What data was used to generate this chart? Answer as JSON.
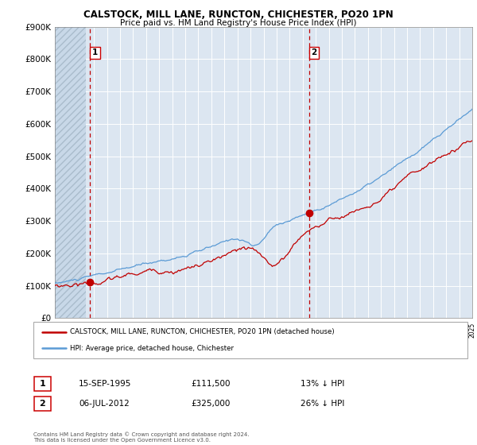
{
  "title1": "CALSTOCK, MILL LANE, RUNCTON, CHICHESTER, PO20 1PN",
  "title2": "Price paid vs. HM Land Registry's House Price Index (HPI)",
  "legend_line1": "CALSTOCK, MILL LANE, RUNCTON, CHICHESTER, PO20 1PN (detached house)",
  "legend_line2": "HPI: Average price, detached house, Chichester",
  "footer": "Contains HM Land Registry data © Crown copyright and database right 2024.\nThis data is licensed under the Open Government Licence v3.0.",
  "sale1_date": "15-SEP-1995",
  "sale1_price": 111500,
  "sale1_label": "13% ↓ HPI",
  "sale1_year": 1995.71,
  "sale2_date": "06-JUL-2012",
  "sale2_price": 325000,
  "sale2_label": "26% ↓ HPI",
  "sale2_year": 2012.51,
  "hpi_color": "#5b9bd5",
  "price_color": "#c00000",
  "marker_color": "#c00000",
  "plot_bg": "#dce6f1",
  "grid_color": "#ffffff",
  "ylim_min": 0,
  "ylim_max": 900000,
  "xmin": 1993,
  "xmax": 2025
}
